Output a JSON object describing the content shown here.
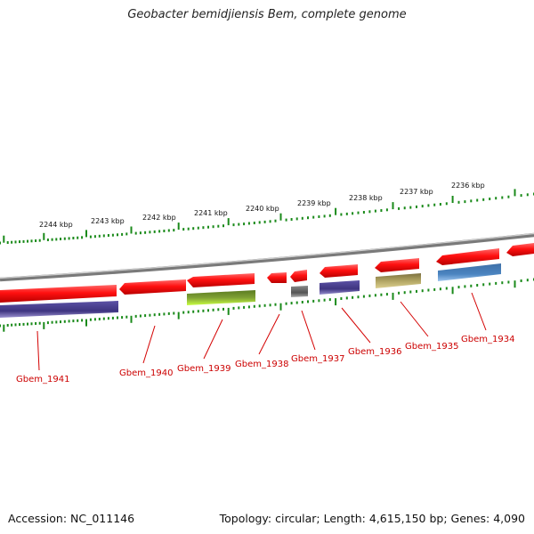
{
  "title": "Geobacter bemidjiensis Bem, complete genome",
  "footer": {
    "accession": "Accession: NC_011146",
    "summary": "Topology: circular; Length: 4,615,150 bp; Genes: 4,090"
  },
  "scale_labels": [
    "2244 kbp",
    "2243 kbp",
    "2242 kbp",
    "2241 kbp",
    "2240 kbp",
    "2239 kbp",
    "2238 kbp",
    "2237 kbp",
    "2236 kbp"
  ],
  "genes": [
    {
      "id": "Gbem_1941",
      "strand": "minus",
      "color": "#4a3f8c"
    },
    {
      "id": "Gbem_1940",
      "strand": "plus",
      "color": "#ff1a1a"
    },
    {
      "id": "Gbem_1939",
      "strand": "minus",
      "color": "#6f8f2a"
    },
    {
      "id": "Gbem_1938",
      "strand": "plus",
      "color": "#ff1a1a"
    },
    {
      "id": "Gbem_1937",
      "strand": "minus",
      "color": "#666666"
    },
    {
      "id": "Gbem_1936",
      "strand": "minus",
      "color": "#4a3f8c"
    },
    {
      "id": "Gbem_1935",
      "strand": "minus",
      "color": "#a89c55"
    },
    {
      "id": "Gbem_1934",
      "strand": "minus",
      "color": "#4a80b8"
    }
  ],
  "colors": {
    "plus_strand": "#ff1a1a",
    "ruler_ticks": "#1a8a1a",
    "backbone": "#8a8a8a",
    "gene_labels": "#cc0000"
  }
}
